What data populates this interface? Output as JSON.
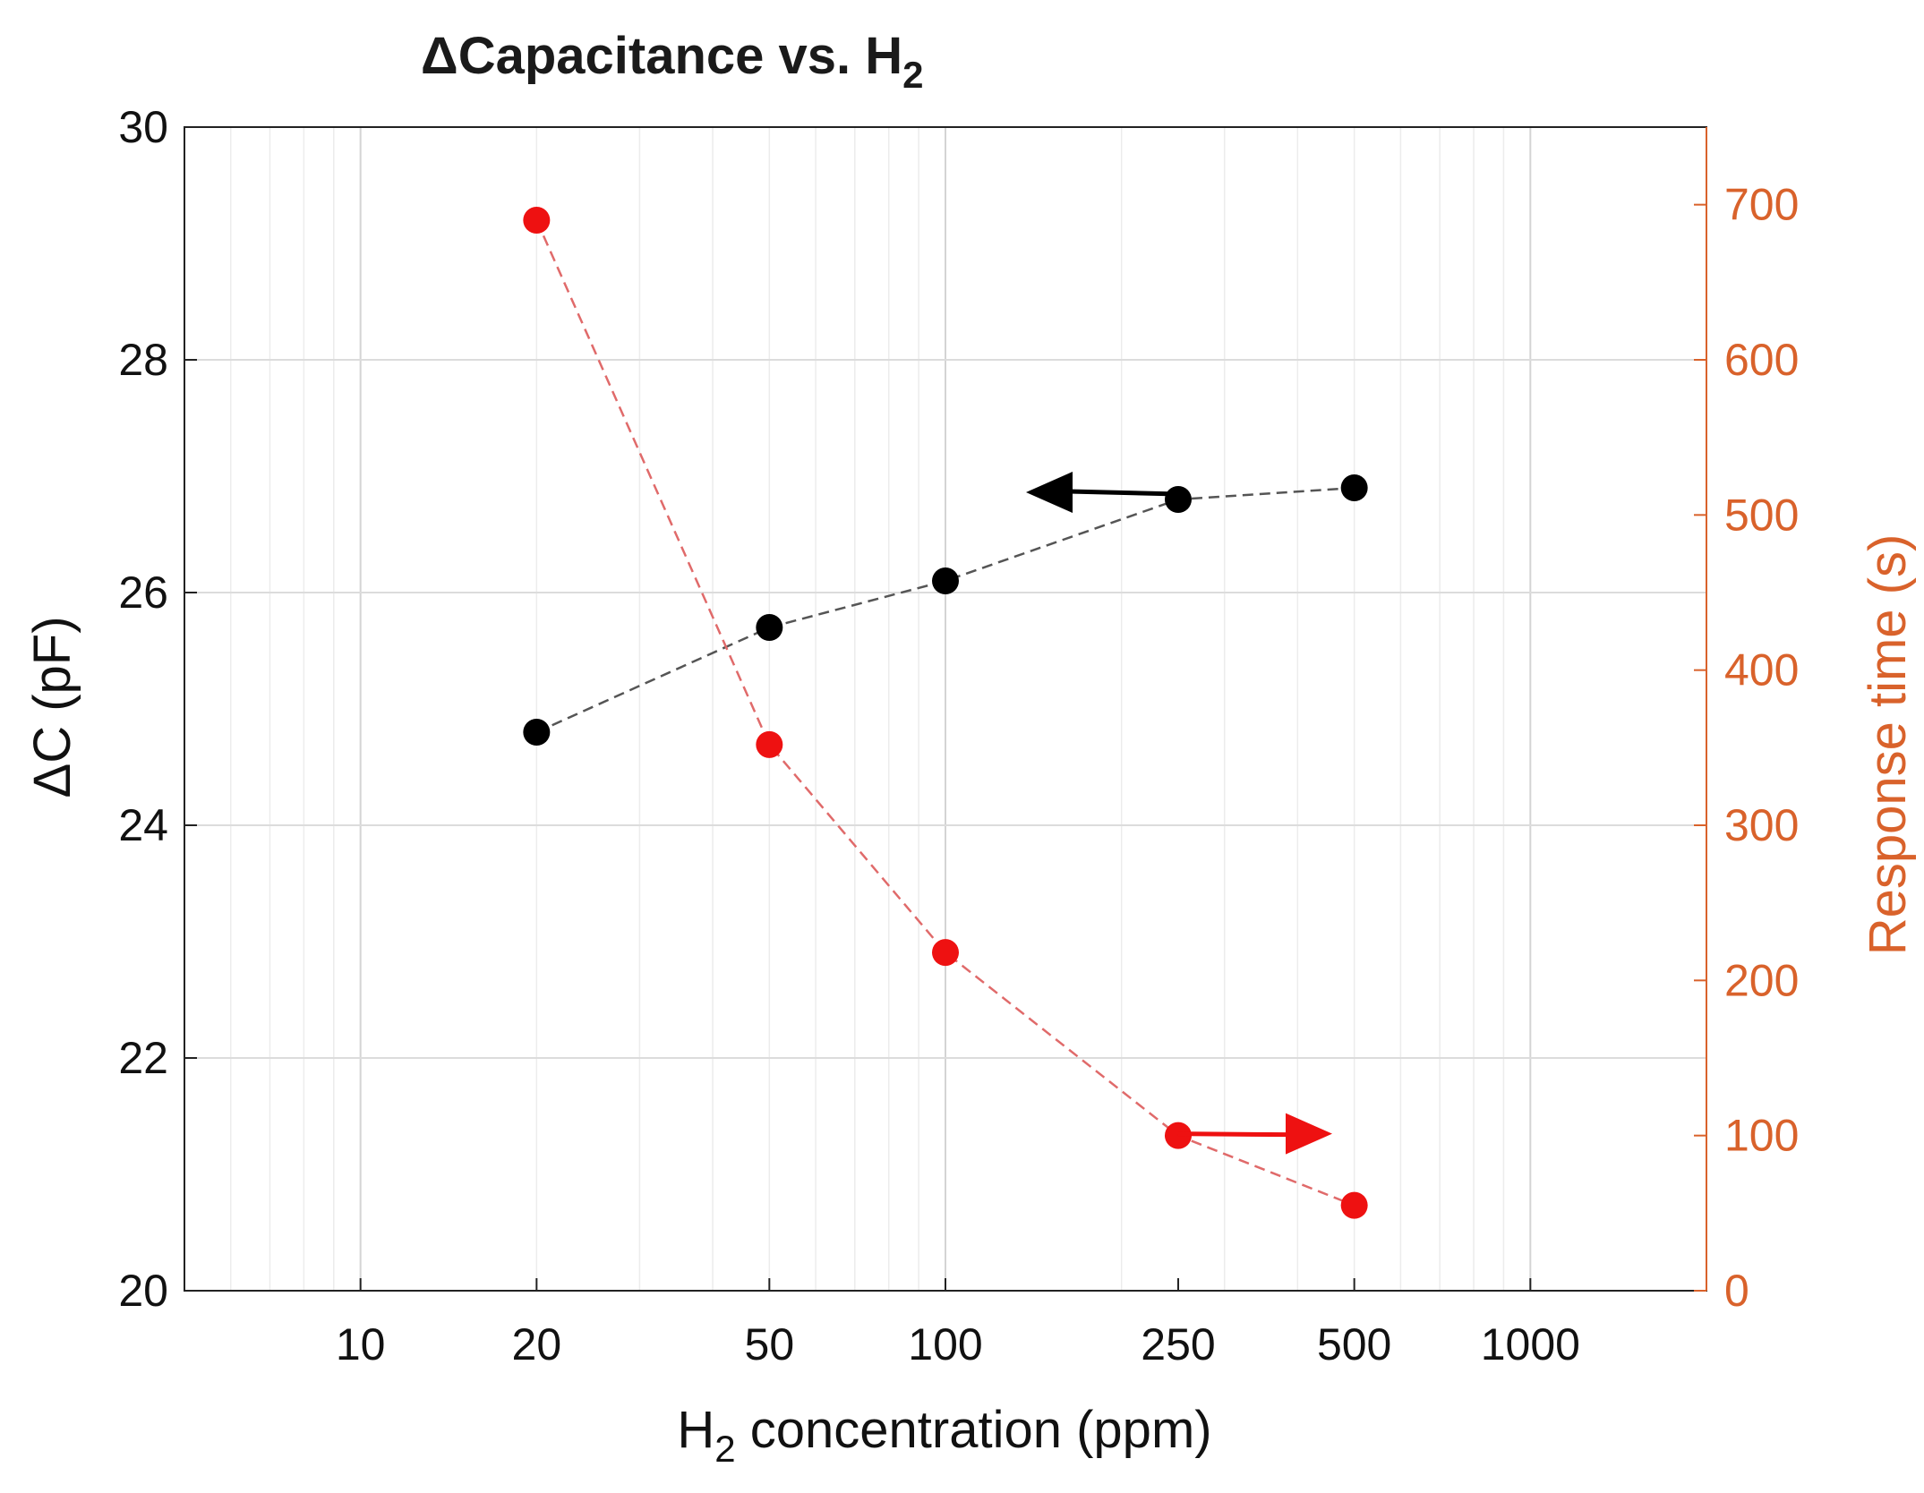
{
  "chart_data": {
    "type": "scatter",
    "title": {
      "prefix": "ΔCapacitance vs. H",
      "subscript": "2"
    },
    "xlabel": {
      "prefix": "H",
      "subscript": "2",
      "suffix": " concentration (ppm)"
    },
    "ylabel_left": "ΔC (pF)",
    "ylabel_right": "Response time (s)",
    "x_scale": "log",
    "xlim": [
      5,
      2000
    ],
    "ylim_left": [
      20,
      30
    ],
    "ylim_right": [
      0,
      750
    ],
    "x_ticks": [
      10,
      20,
      50,
      100,
      250,
      500,
      1000
    ],
    "x_tick_labels": [
      "10",
      "20",
      "50",
      "100",
      "250",
      "500",
      "1000"
    ],
    "y_left_ticks": [
      20,
      22,
      24,
      26,
      28,
      30
    ],
    "y_left_tick_labels": [
      "20",
      "22",
      "24",
      "26",
      "28",
      "30"
    ],
    "y_right_ticks": [
      0,
      100,
      200,
      300,
      400,
      500,
      600,
      700
    ],
    "y_right_tick_labels": [
      "0",
      "100",
      "200",
      "300",
      "400",
      "500",
      "600",
      "700"
    ],
    "grid": true,
    "series": [
      {
        "name": "ΔC",
        "axis": "left",
        "color": "#000000",
        "line_style": "dashed",
        "line_color": "#555555",
        "x": [
          20,
          50,
          100,
          250,
          500
        ],
        "y": [
          24.8,
          25.7,
          26.1,
          26.8,
          26.9
        ]
      },
      {
        "name": "Response time",
        "axis": "right",
        "color": "#ee1111",
        "line_style": "dashed",
        "line_color": "#e06a6a",
        "x": [
          20,
          50,
          100,
          250,
          500
        ],
        "y": [
          690,
          352,
          218,
          100,
          55
        ]
      }
    ],
    "annotations": [
      {
        "type": "arrow",
        "direction": "left",
        "series": "ΔC",
        "color": "#000000"
      },
      {
        "type": "arrow",
        "direction": "right",
        "series": "Response time",
        "color": "#ee1111"
      }
    ]
  }
}
